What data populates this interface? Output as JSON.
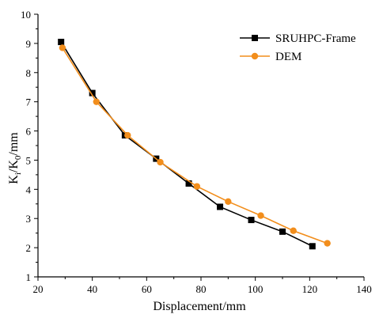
{
  "chart_data": {
    "type": "line",
    "xlabel": "Displacement/mm",
    "ylabel": {
      "base": "K",
      "sub1": "i",
      "mid": "/K",
      "sub2": "0",
      "tail": "/mm"
    },
    "xlim": [
      20,
      140
    ],
    "ylim": [
      1,
      10
    ],
    "xticks": [
      20,
      40,
      60,
      80,
      100,
      120,
      140
    ],
    "yticks": [
      1,
      2,
      3,
      4,
      5,
      6,
      7,
      8,
      9,
      10
    ],
    "grid": false,
    "legend_position": "top-right",
    "series": [
      {
        "name": "SRUHPC-Frame",
        "color": "#000000",
        "marker": "square",
        "x": [
          28.5,
          40,
          52,
          63.5,
          75.5,
          87,
          98.5,
          110,
          121
        ],
        "y": [
          9.05,
          7.3,
          5.85,
          5.05,
          4.2,
          3.4,
          2.95,
          2.55,
          2.05
        ]
      },
      {
        "name": "DEM",
        "color": "#f28e1c",
        "marker": "circle",
        "x": [
          29,
          41.5,
          53,
          65,
          78.5,
          90,
          102,
          114,
          126.5
        ],
        "y": [
          8.85,
          7.0,
          5.85,
          4.93,
          4.1,
          3.58,
          3.1,
          2.58,
          2.15
        ]
      }
    ]
  }
}
